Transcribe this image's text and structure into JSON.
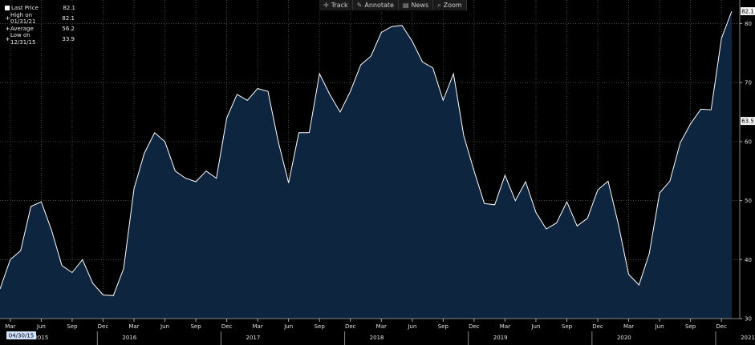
{
  "toolbar": {
    "track": "Track",
    "annotate": "Annotate",
    "news": "News",
    "zoom": "Zoom"
  },
  "legend": {
    "items": [
      {
        "label": "Last Price",
        "value": "82.1"
      },
      {
        "label": "High on 01/31/21",
        "value": "82.1"
      },
      {
        "label": "Average",
        "value": "56.2"
      },
      {
        "label": "Low on 12/31/15",
        "value": "33.9"
      }
    ]
  },
  "last_price_tag": "82.1",
  "secondary_tag": "63.5",
  "start_date_tag": "04/30/15",
  "colors": {
    "background": "#000000",
    "area_fill": "#0e2540",
    "line": "#ffffff",
    "grid": "#555555"
  },
  "chart_data": {
    "type": "area",
    "grid": true,
    "ylim": [
      30,
      84
    ],
    "yticks": [
      30,
      40,
      50,
      60,
      70,
      80
    ],
    "month_ticks": [
      "Mar",
      "Jun",
      "Sep",
      "Dec",
      "Mar",
      "Jun",
      "Sep",
      "Dec",
      "Mar",
      "Jun",
      "Sep",
      "Dec",
      "Mar",
      "Jun",
      "Sep",
      "Dec",
      "Mar",
      "Jun",
      "Sep",
      "Dec",
      "Mar",
      "Jun",
      "Sep",
      "Dec"
    ],
    "year_ticks": [
      "2015",
      "2016",
      "2017",
      "2018",
      "2019",
      "2020",
      "2021"
    ],
    "x_start": "2015-02",
    "x_end": "2021-01",
    "series": [
      {
        "values": [
          35.0,
          40.0,
          41.5,
          49.0,
          49.8,
          45.0,
          39.0,
          37.8,
          40.0,
          36.0,
          34.0,
          33.9,
          38.5,
          52.0,
          58.0,
          61.5,
          60.0,
          55.0,
          53.8,
          53.2,
          55.0,
          53.8,
          64.0,
          68.0,
          67.0,
          69.0,
          68.5,
          60.0,
          53.0,
          61.5,
          61.5,
          71.5,
          68.0,
          65.0,
          68.5,
          73.0,
          74.5,
          78.5,
          79.5,
          79.7,
          77.0,
          73.5,
          72.5,
          67.0,
          71.5,
          61.0,
          55.0,
          49.5,
          49.3,
          54.3,
          50.0,
          53.2,
          48.0,
          45.2,
          46.2,
          49.8,
          45.7,
          47.0,
          51.8,
          53.3,
          46.0,
          37.5,
          35.7,
          41.0,
          51.3,
          53.3,
          59.8,
          63.0,
          65.5,
          65.4,
          77.5,
          82.1
        ]
      }
    ]
  }
}
